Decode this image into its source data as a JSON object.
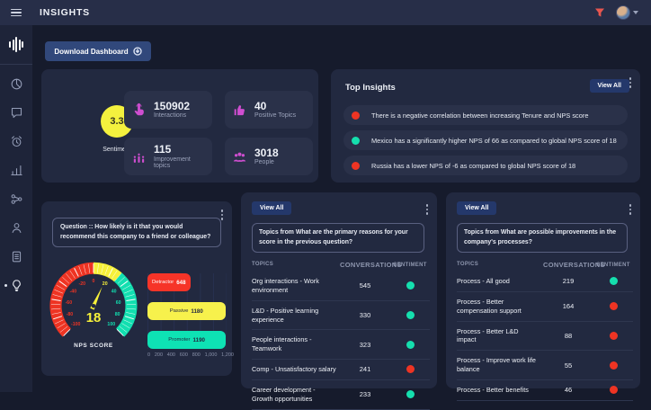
{
  "app": {
    "title": "INSIGHTS"
  },
  "actions": {
    "download_label": "Download Dashboard"
  },
  "colors": {
    "positive": "#15dfae",
    "negative": "#ee3423",
    "accent_icon": "#cf4ed0",
    "sentiment_badge": "#f4f13e"
  },
  "sidebar": {
    "items": [
      "dashboard",
      "conversations",
      "alerts",
      "analytics",
      "connections",
      "people",
      "reports",
      "insights"
    ]
  },
  "summary": {
    "sentiment": {
      "value": "3.3",
      "label": "Sentiment"
    },
    "stats": [
      {
        "icon": "tap-icon",
        "value": "150902",
        "label": "Interactions"
      },
      {
        "icon": "thumbs-up-icon",
        "value": "40",
        "label": "Positive Topics"
      },
      {
        "icon": "improvement-icon",
        "value": "115",
        "label": "Improvement topics"
      },
      {
        "icon": "people-icon",
        "value": "3018",
        "label": "People"
      }
    ]
  },
  "top_insights": {
    "title": "Top Insights",
    "view_all_label": "View All",
    "items": [
      {
        "sentiment": "negative",
        "text": "There is a negative correlation between increasing Tenure and NPS score"
      },
      {
        "sentiment": "positive",
        "text": "Mexico has a significantly higher NPS of 66 as compared to global NPS score of 18"
      },
      {
        "sentiment": "negative",
        "text": "Russia has a lower NPS of -6 as compared to global NPS score of 18"
      }
    ]
  },
  "nps_widget": {
    "question": "Question :: How likely is it that you would recommend this company to a friend or colleague?",
    "gauge": {
      "type": "gauge",
      "label": "NPS SCORE",
      "value": 18,
      "min": -100,
      "max": 100,
      "tick_step": 20,
      "value_color": "#f7f13a",
      "needle_color": "#f7f13a",
      "segments": [
        {
          "from": -100,
          "to": 0,
          "color": "#ee3423"
        },
        {
          "from": 0,
          "to": 30,
          "color": "#f7f13a"
        },
        {
          "from": 30,
          "to": 100,
          "color": "#12dfb0"
        }
      ]
    },
    "bars": {
      "type": "bar",
      "xmax": 1200,
      "x_ticks": [
        "0",
        "200",
        "400",
        "600",
        "800",
        "1,000",
        "1,200"
      ],
      "items": [
        {
          "label": "Detractor",
          "value": 648,
          "display": "648",
          "color": "#f63428",
          "text_color": "#ffffff"
        },
        {
          "label": "Passive",
          "value": 1180,
          "display": "1180",
          "color": "#f7f14c",
          "text_color": "#232940"
        },
        {
          "label": "Promoter",
          "value": 1190,
          "display": "1190",
          "color": "#0ee2b4",
          "text_color": "#232940"
        }
      ]
    }
  },
  "topic_panels": [
    {
      "view_all_label": "View All",
      "question": "Topics from What are the primary reasons for your score in the previous question?",
      "columns": [
        "TOPICS",
        "CONVERSATIONS",
        "SENTIMENT"
      ],
      "rows": [
        {
          "topic": "Org interactions - Work environment",
          "conversations": "545",
          "sentiment": "positive"
        },
        {
          "topic": "L&D - Positive learning experience",
          "conversations": "330",
          "sentiment": "positive"
        },
        {
          "topic": "People interactions - Teamwork",
          "conversations": "323",
          "sentiment": "positive"
        },
        {
          "topic": "Comp - Unsatisfactory salary",
          "conversations": "241",
          "sentiment": "negative"
        },
        {
          "topic": "Career development - Growth opportunities",
          "conversations": "233",
          "sentiment": "positive"
        }
      ]
    },
    {
      "view_all_label": "View All",
      "question": "Topics from What are possible improvements in the company's processes?",
      "columns": [
        "TOPICS",
        "CONVERSATIONS",
        "SENTIMENT"
      ],
      "rows": [
        {
          "topic": "Process - All good",
          "conversations": "219",
          "sentiment": "positive"
        },
        {
          "topic": "Process - Better compensation support",
          "conversations": "164",
          "sentiment": "negative"
        },
        {
          "topic": "Process - Better L&D impact",
          "conversations": "88",
          "sentiment": "negative"
        },
        {
          "topic": "Process - Improve work life balance",
          "conversations": "55",
          "sentiment": "negative"
        },
        {
          "topic": "Process - Better benefits",
          "conversations": "46",
          "sentiment": "negative"
        }
      ]
    }
  ]
}
